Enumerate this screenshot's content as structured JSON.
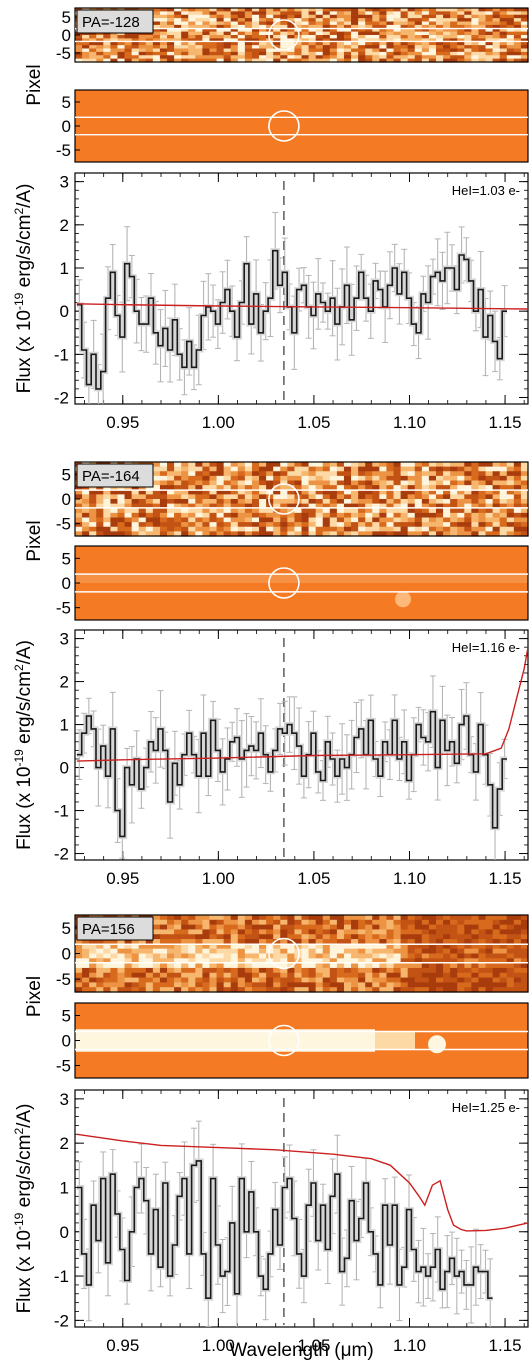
{
  "figure": {
    "shared_xlabel": "Wavelength (μm)",
    "pixel_ylabel": "Pixel",
    "flux_ylabel_prefix": "Flux (x 10",
    "flux_ylabel_exp": "-19",
    "flux_ylabel_mid": " erg/s/cm",
    "flux_ylabel_exp2": "2",
    "flux_ylabel_suffix": "/A)",
    "x_tick_labels": [
      "0.95",
      "1.00",
      "1.05",
      "1.10",
      "1.15"
    ],
    "pixel_tick_labels": [
      "5",
      "0",
      "-5"
    ],
    "flux_tick_labels": [
      "3",
      "2",
      "1",
      "0",
      "-1",
      "-2"
    ],
    "marker_wavelength": 1.0343,
    "colors": {
      "spectrum": "#1a1a1a",
      "model": "#cc2020",
      "errorbar": "#b5b5b5",
      "image_bg": "#f47a24",
      "image_dark": "#a83c0c",
      "image_bright": "#fff6e0",
      "circle": "#ffffff"
    }
  },
  "chart_data": [
    {
      "type": "line",
      "panel_label": "PA=-128",
      "annotation": "HeI=1.03 e-",
      "xlim": [
        0.925,
        1.162
      ],
      "ylim": [
        -2.15,
        3.2
      ],
      "xlabel": "",
      "ylabel": "Flux (x 10^-19 erg/s/cm^2/A)",
      "series": [
        {
          "type": "step",
          "x_start": 0.926,
          "x_step": 0.0025,
          "values": [
            0.15,
            -0.9,
            -1.7,
            -1.0,
            -1.8,
            -1.4,
            0.3,
            0.9,
            -0.1,
            -0.6,
            1.1,
            0.8,
            0.0,
            -0.3,
            -0.3,
            0.3,
            -0.5,
            -0.8,
            -0.4,
            -0.9,
            -0.2,
            -1.0,
            -1.3,
            -0.7,
            -1.3,
            -0.9,
            -0.1,
            0.1,
            0.0,
            -0.3,
            0.2,
            0.5,
            0.0,
            -0.6,
            0.2,
            1.1,
            -0.3,
            0.4,
            -0.5,
            0.0,
            0.3,
            1.4,
            0.6,
            0.9,
            0.1,
            -0.5,
            0.5,
            0.6,
            0.1,
            -0.1,
            0.4,
            0.2,
            0.0,
            0.3,
            -0.3,
            0.1,
            0.6,
            -0.2,
            0.3,
            0.9,
            0.3,
            0.0,
            0.7,
            0.5,
            0.1,
            0.6,
            1.0,
            0.4,
            0.9,
            0.3,
            -0.3,
            -0.5,
            0.4,
            0.2,
            0.8,
            0.9,
            0.7,
            1.0,
            1.0,
            0.5,
            1.3,
            1.2,
            0.7,
            0.0,
            0.5,
            -0.6,
            -0.1,
            -0.7,
            -1.1,
            0.0
          ]
        },
        {
          "type": "line",
          "x": [
            0.926,
            0.95,
            1.0,
            1.05,
            1.1,
            1.162
          ],
          "values": [
            0.17,
            0.15,
            0.12,
            0.1,
            0.08,
            0.05
          ]
        }
      ]
    },
    {
      "type": "line",
      "panel_label": "PA=-164",
      "annotation": "HeI=1.16 e-",
      "xlim": [
        0.925,
        1.162
      ],
      "ylim": [
        -2.15,
        3.2
      ],
      "xlabel": "",
      "ylabel": "Flux (x 10^-19 erg/s/cm^2/A)",
      "series": [
        {
          "type": "step",
          "x_start": 0.926,
          "x_step": 0.0025,
          "values": [
            0.3,
            0.8,
            1.2,
            0.9,
            0.0,
            0.5,
            -0.2,
            0.9,
            -1.0,
            -1.6,
            0.0,
            -0.4,
            0.2,
            -0.5,
            0.0,
            0.6,
            0.4,
            0.9,
            0.4,
            -0.8,
            0.1,
            -0.4,
            0.3,
            0.8,
            0.3,
            -0.2,
            0.8,
            -0.2,
            1.1,
            0.4,
            -0.1,
            0.2,
            0.6,
            0.7,
            0.2,
            0.4,
            0.5,
            0.4,
            0.8,
            0.3,
            -0.1,
            0.4,
            0.9,
            0.8,
            1.0,
            0.8,
            0.5,
            -0.2,
            0.3,
            0.8,
            -0.1,
            -0.3,
            0.6,
            0.2,
            -0.2,
            0.2,
            0.0,
            0.3,
            0.7,
            0.9,
            0.3,
            1.1,
            0.2,
            -0.2,
            0.6,
            0.3,
            1.1,
            0.2,
            0.6,
            -0.3,
            0.3,
            1.0,
            0.7,
            0.6,
            1.3,
            0.0,
            1.1,
            0.4,
            0.6,
            0.1,
            1.0,
            1.2,
            0.3,
            -0.1,
            1.0,
            0.3,
            -0.4,
            -1.4,
            -0.5,
            0.2
          ]
        },
        {
          "type": "line",
          "x": [
            0.926,
            0.95,
            1.0,
            1.05,
            1.1,
            1.14,
            1.148,
            1.152,
            1.156,
            1.16,
            1.162
          ],
          "values": [
            0.15,
            0.18,
            0.22,
            0.28,
            0.3,
            0.32,
            0.45,
            0.9,
            1.6,
            2.3,
            2.8
          ]
        }
      ]
    },
    {
      "type": "line",
      "panel_label": "PA=156",
      "annotation": "HeI=1.25 e-",
      "xlim": [
        0.925,
        1.162
      ],
      "ylim": [
        -2.15,
        3.2
      ],
      "xlabel": "Wavelength (μm)",
      "ylabel": "Flux (x 10^-19 erg/s/cm^2/A)",
      "series": [
        {
          "type": "step",
          "x_start": 0.926,
          "x_step": 0.0025,
          "values": [
            1.0,
            -0.5,
            -1.2,
            0.6,
            -0.2,
            1.2,
            -0.7,
            1.3,
            0.4,
            -0.4,
            -1.1,
            0.0,
            1.0,
            1.2,
            0.7,
            -0.5,
            0.5,
            -0.8,
            1.1,
            -1.0,
            -0.3,
            0.8,
            1.2,
            -0.5,
            1.5,
            1.6,
            -0.5,
            -1.5,
            1.2,
            -0.3,
            -1.0,
            -0.9,
            0.2,
            -1.4,
            1.2,
            0.0,
            0.9,
            0.0,
            -1.0,
            -1.3,
            -0.5,
            0.5,
            -0.3,
            1.0,
            1.2,
            0.3,
            -0.5,
            -1.0,
            0.6,
            1.1,
            -0.2,
            0.6,
            -0.4,
            0.8,
            1.3,
            -0.9,
            -0.6,
            0.7,
            -0.2,
            0.3,
            1.1,
            0.0,
            -0.5,
            -1.2,
            0.6,
            -0.3,
            0.6,
            -1.2,
            -0.8,
            0.5,
            -0.4,
            -0.9,
            -0.8,
            -1.0,
            -0.8,
            -0.4,
            -1.3,
            -0.9,
            -0.6,
            -1.0,
            -0.9,
            -1.2,
            -1.2,
            -0.8,
            -0.9,
            -0.9,
            -1.5
          ]
        },
        {
          "type": "line",
          "x": [
            0.926,
            0.95,
            0.97,
            1.0,
            1.03,
            1.06,
            1.08,
            1.09,
            1.1,
            1.105,
            1.108,
            1.112,
            1.116,
            1.12,
            1.123,
            1.127,
            1.13,
            1.14,
            1.15,
            1.162
          ],
          "values": [
            2.2,
            2.05,
            1.95,
            1.9,
            1.85,
            1.75,
            1.65,
            1.5,
            1.1,
            0.8,
            0.6,
            1.05,
            1.15,
            0.5,
            0.15,
            0.05,
            0.02,
            0.03,
            0.08,
            0.2
          ]
        }
      ]
    }
  ]
}
